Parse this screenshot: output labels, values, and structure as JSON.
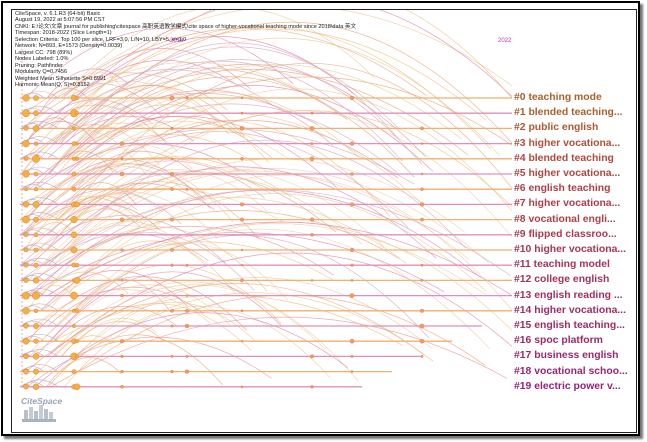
{
  "info_lines": [
    "CiteSpace, v. 6.1.R3 (64-bit) Basic",
    "August 19, 2022 at 5:07:56 PM CST",
    "CNKI: E:\\论文\\文章 journal for publishing\\citespace 高职英语教学模式\\cite space of higher-vocational teaching mode since 2018\\data 英文",
    "Timespan: 2018-2022 (Slice Length=1)",
    "Selection Criteria: Top 100 per slice, LRF=3.0, L/N=10, LBY=5, e=1.0",
    "Network: N=893, E=1573 (Density=0.0039)",
    "Largest CC: 798 (89%)",
    "Nodes Labeled: 1.0%",
    "Pruning: Pathfinder",
    "Modularity Q=0.7456",
    "Weighted Mean Silhouette S=0.8991",
    "Harmonic Mean(Q, S)=0.8152"
  ],
  "timeline": {
    "start_year": "2018",
    "end_year": "2022"
  },
  "clusters": [
    {
      "label": "#0 teaching mode",
      "color": "#a8622c"
    },
    {
      "label": "#1 blended teaching...",
      "color": "#a8622c"
    },
    {
      "label": "#2 public english",
      "color": "#ad5a32"
    },
    {
      "label": "#3 higher vocationa...",
      "color": "#b05038"
    },
    {
      "label": "#4 blended teaching",
      "color": "#b04a3c"
    },
    {
      "label": "#5 higher vocationa...",
      "color": "#b04640"
    },
    {
      "label": "#6 english teaching",
      "color": "#b04046"
    },
    {
      "label": "#7 higher vocationa...",
      "color": "#b03c4a"
    },
    {
      "label": "#8 vocational engli...",
      "color": "#b0404a"
    },
    {
      "label": "#9 flipped classroo...",
      "color": "#ad3a50"
    },
    {
      "label": "#10 higher vocationa...",
      "color": "#ab3654"
    },
    {
      "label": "#11 teaching model",
      "color": "#a83458"
    },
    {
      "label": "#12 college english",
      "color": "#a4325c"
    },
    {
      "label": "#13 english reading ...",
      "color": "#a2305e"
    },
    {
      "label": "#14 higher vocationa...",
      "color": "#a02e62"
    },
    {
      "label": "#15 english teaching...",
      "color": "#9e2c66"
    },
    {
      "label": "#16 spoc platform",
      "color": "#9c2a6a"
    },
    {
      "label": "#17 business english",
      "color": "#9a286e"
    },
    {
      "label": "#18 vocational schoo...",
      "color": "#982672"
    },
    {
      "label": "#19 electric power v...",
      "color": "#962278"
    }
  ],
  "logo_text": "CiteSpace"
}
